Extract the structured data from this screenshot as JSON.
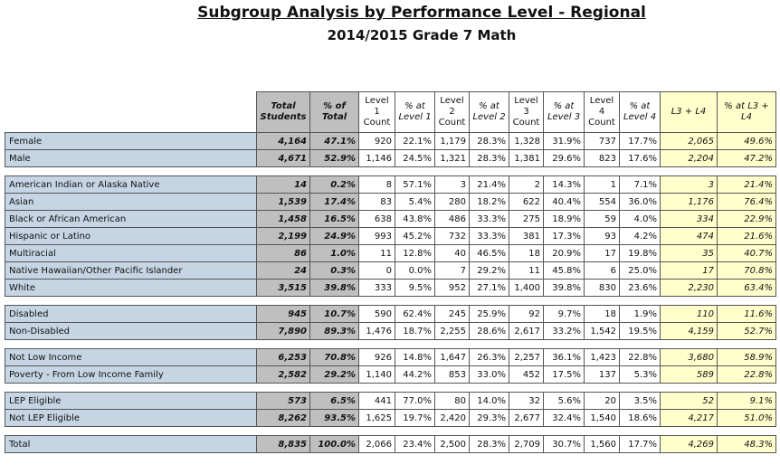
{
  "header": {
    "title": "Subgroup Analysis by Performance Level - Regional",
    "subtitle": "2014/2015 Grade 7 Math"
  },
  "table": {
    "columns": [
      "Total Students",
      "% of Total",
      "Level 1 Count",
      "% at Level 1",
      "Level 2 Count",
      "% at Level 2",
      "Level 3 Count",
      "% at Level 3",
      "Level 4 Count",
      "% at Level 4",
      "L3 + L4",
      "% at L3 + L4"
    ],
    "groups": [
      [
        [
          "Female",
          "4,164",
          "47.1%",
          "920",
          "22.1%",
          "1,179",
          "28.3%",
          "1,328",
          "31.9%",
          "737",
          "17.7%",
          "2,065",
          "49.6%"
        ],
        [
          "Male",
          "4,671",
          "52.9%",
          "1,146",
          "24.5%",
          "1,321",
          "28.3%",
          "1,381",
          "29.6%",
          "823",
          "17.6%",
          "2,204",
          "47.2%"
        ]
      ],
      [
        [
          "American Indian or Alaska Native",
          "14",
          "0.2%",
          "8",
          "57.1%",
          "3",
          "21.4%",
          "2",
          "14.3%",
          "1",
          "7.1%",
          "3",
          "21.4%"
        ],
        [
          "Asian",
          "1,539",
          "17.4%",
          "83",
          "5.4%",
          "280",
          "18.2%",
          "622",
          "40.4%",
          "554",
          "36.0%",
          "1,176",
          "76.4%"
        ],
        [
          "Black or African American",
          "1,458",
          "16.5%",
          "638",
          "43.8%",
          "486",
          "33.3%",
          "275",
          "18.9%",
          "59",
          "4.0%",
          "334",
          "22.9%"
        ],
        [
          "Hispanic or Latino",
          "2,199",
          "24.9%",
          "993",
          "45.2%",
          "732",
          "33.3%",
          "381",
          "17.3%",
          "93",
          "4.2%",
          "474",
          "21.6%"
        ],
        [
          "Multiracial",
          "86",
          "1.0%",
          "11",
          "12.8%",
          "40",
          "46.5%",
          "18",
          "20.9%",
          "17",
          "19.8%",
          "35",
          "40.7%"
        ],
        [
          "Native Hawaiian/Other Pacific Islander",
          "24",
          "0.3%",
          "0",
          "0.0%",
          "7",
          "29.2%",
          "11",
          "45.8%",
          "6",
          "25.0%",
          "17",
          "70.8%"
        ],
        [
          "White",
          "3,515",
          "39.8%",
          "333",
          "9.5%",
          "952",
          "27.1%",
          "1,400",
          "39.8%",
          "830",
          "23.6%",
          "2,230",
          "63.4%"
        ]
      ],
      [
        [
          "Disabled",
          "945",
          "10.7%",
          "590",
          "62.4%",
          "245",
          "25.9%",
          "92",
          "9.7%",
          "18",
          "1.9%",
          "110",
          "11.6%"
        ],
        [
          "Non-Disabled",
          "7,890",
          "89.3%",
          "1,476",
          "18.7%",
          "2,255",
          "28.6%",
          "2,617",
          "33.2%",
          "1,542",
          "19.5%",
          "4,159",
          "52.7%"
        ]
      ],
      [
        [
          "Not Low Income",
          "6,253",
          "70.8%",
          "926",
          "14.8%",
          "1,647",
          "26.3%",
          "2,257",
          "36.1%",
          "1,423",
          "22.8%",
          "3,680",
          "58.9%"
        ],
        [
          "Poverty - From Low Income Family",
          "2,582",
          "29.2%",
          "1,140",
          "44.2%",
          "853",
          "33.0%",
          "452",
          "17.5%",
          "137",
          "5.3%",
          "589",
          "22.8%"
        ]
      ],
      [
        [
          "LEP Eligible",
          "573",
          "6.5%",
          "441",
          "77.0%",
          "80",
          "14.0%",
          "32",
          "5.6%",
          "20",
          "3.5%",
          "52",
          "9.1%"
        ],
        [
          "Not LEP Eligible",
          "8,262",
          "93.5%",
          "1,625",
          "19.7%",
          "2,420",
          "29.3%",
          "2,677",
          "32.4%",
          "1,540",
          "18.6%",
          "4,217",
          "51.0%"
        ]
      ],
      [
        [
          "Total",
          "8,835",
          "100.0%",
          "2,066",
          "23.4%",
          "2,500",
          "28.3%",
          "2,709",
          "30.7%",
          "1,560",
          "17.7%",
          "4,269",
          "48.3%"
        ]
      ]
    ]
  }
}
